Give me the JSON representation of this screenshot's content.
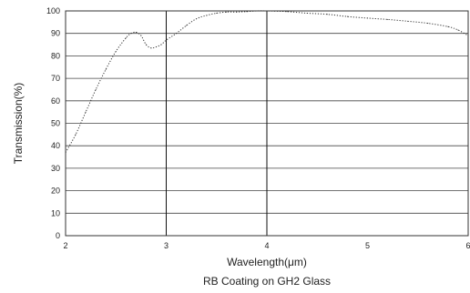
{
  "chart_data": {
    "type": "line",
    "title": "RB Coating on GH2 Glass",
    "xlabel": "Wavelength(μm)",
    "ylabel": "Transmission(%)",
    "xlim": [
      2,
      6
    ],
    "ylim": [
      0,
      100
    ],
    "xticks": [
      "2",
      "3",
      "4",
      "5",
      "6"
    ],
    "yticks": [
      "0",
      "10",
      "20",
      "30",
      "40",
      "50",
      "60",
      "70",
      "80",
      "90",
      "100"
    ],
    "grid": "horizontal lines at every 10%; vertical lines at 3 and 4",
    "series": [
      {
        "line_style": "dotted",
        "color": "#333333",
        "x": [
          2.0,
          2.1,
          2.2,
          2.3,
          2.4,
          2.5,
          2.6,
          2.65,
          2.7,
          2.75,
          2.8,
          2.85,
          2.9,
          2.95,
          3.0,
          3.1,
          3.2,
          3.3,
          3.4,
          3.5,
          3.6,
          3.7,
          3.8,
          3.9,
          4.0,
          4.2,
          4.4,
          4.6,
          4.8,
          5.0,
          5.2,
          5.4,
          5.6,
          5.8,
          5.9,
          6.0
        ],
        "y": [
          37,
          45,
          55,
          65,
          74,
          82,
          88,
          90,
          90.5,
          89,
          85,
          83.5,
          84,
          85,
          87,
          90,
          93.5,
          96.5,
          98,
          99,
          99.5,
          99.5,
          99.7,
          100,
          100,
          99.7,
          99,
          98.5,
          97.5,
          96.8,
          96.2,
          95.4,
          94.5,
          93,
          91.5,
          89
        ]
      }
    ]
  }
}
